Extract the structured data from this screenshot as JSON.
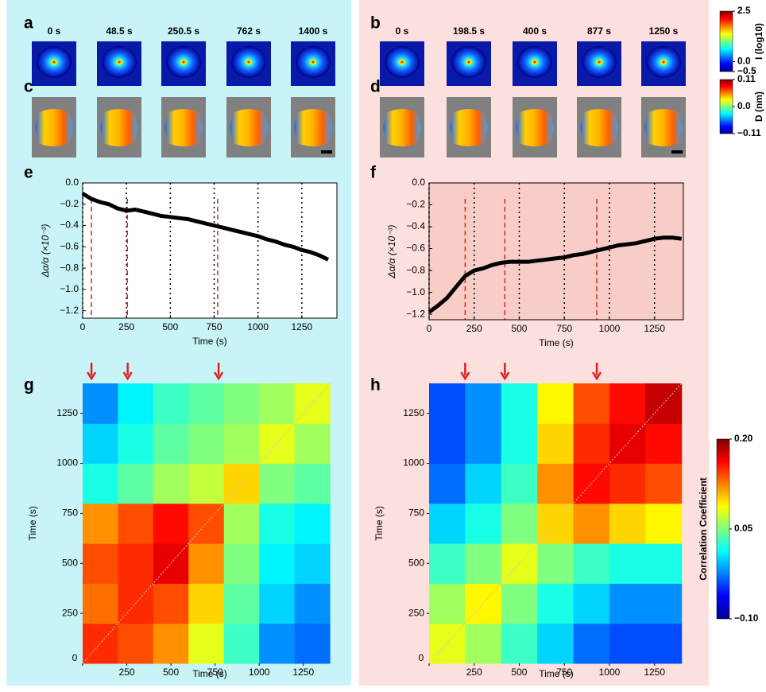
{
  "thumbnails": [
    {
      "label": "a",
      "times": [
        "0 s",
        "48.5 s",
        "250.5 s",
        "762 s",
        "1400 s"
      ]
    },
    {
      "label": "b",
      "times": [
        "0 s",
        "198.5 s",
        "400 s",
        "877 s",
        "1250 s"
      ]
    },
    {
      "label": "c"
    },
    {
      "label": "d"
    }
  ],
  "colorbars": [
    {
      "title": "I (log10)",
      "lim": [
        -0.5,
        2.5
      ],
      "ticks": [
        2.5,
        {
          "value": 0,
          "label": "0.0"
        },
        {
          "value": -0.5,
          "label": "−0.5"
        }
      ]
    },
    {
      "title": "D (nm)",
      "lim": [
        -0.11,
        0.11
      ],
      "ticks": [
        0.11,
        {
          "value": 0,
          "label": "0.0"
        },
        {
          "value": -0.11,
          "label": "−0.11"
        }
      ]
    }
  ],
  "chart_data": [
    {
      "type": "line",
      "label": "e",
      "xlabel": "Time (s)",
      "ylabel": "Δα/α (×10⁻³)",
      "x": [
        0,
        50,
        100,
        150,
        200,
        250,
        300,
        350,
        400,
        450,
        500,
        550,
        600,
        650,
        700,
        750,
        800,
        850,
        900,
        950,
        1000,
        1050,
        1100,
        1150,
        1200,
        1250,
        1300,
        1350,
        1400
      ],
      "series": [
        {
          "color": "#000000",
          "values": [
            -0.1,
            -0.15,
            -0.18,
            -0.2,
            -0.24,
            -0.26,
            -0.25,
            -0.27,
            -0.29,
            -0.31,
            -0.32,
            -0.33,
            -0.34,
            -0.36,
            -0.38,
            -0.4,
            -0.42,
            -0.44,
            -0.46,
            -0.48,
            -0.5,
            -0.53,
            -0.55,
            -0.58,
            -0.6,
            -0.63,
            -0.65,
            -0.68,
            -0.72
          ]
        }
      ],
      "markers": [
        50,
        255,
        770
      ],
      "marker_color": "#e02020",
      "background": "#ffffff",
      "grid": "x",
      "xlim": [
        0,
        1450
      ],
      "ylim": [
        -1.27,
        0
      ],
      "xticks": [
        0,
        250,
        500,
        750,
        1000,
        1250
      ],
      "yticks": [
        {
          "value": 0,
          "label": "0.0"
        },
        {
          "value": -0.2,
          "label": "−0.2"
        },
        {
          "value": -0.4,
          "label": "−0.4"
        },
        {
          "value": -0.6,
          "label": "−0.6"
        },
        {
          "value": -0.8,
          "label": "−0.8"
        },
        {
          "value": -1.0,
          "label": "−1.0"
        },
        {
          "value": -1.2,
          "label": "−1.2"
        }
      ]
    },
    {
      "type": "line",
      "label": "f",
      "xlabel": "Time (s)",
      "ylabel": "Δα/α (×10⁻³)",
      "x": [
        0,
        50,
        100,
        150,
        200,
        250,
        300,
        350,
        400,
        450,
        500,
        550,
        600,
        650,
        700,
        750,
        800,
        850,
        900,
        950,
        1000,
        1050,
        1100,
        1150,
        1200,
        1250,
        1300,
        1350,
        1400
      ],
      "series": [
        {
          "color": "#000000",
          "values": [
            -1.18,
            -1.12,
            -1.05,
            -0.95,
            -0.85,
            -0.8,
            -0.78,
            -0.75,
            -0.73,
            -0.72,
            -0.72,
            -0.72,
            -0.71,
            -0.7,
            -0.69,
            -0.68,
            -0.66,
            -0.65,
            -0.63,
            -0.61,
            -0.59,
            -0.57,
            -0.56,
            -0.55,
            -0.53,
            -0.51,
            -0.5,
            -0.5,
            -0.51
          ]
        }
      ],
      "markers": [
        200,
        420,
        930
      ],
      "marker_color": "#e02020",
      "background": "#f8cdc8",
      "grid": "x",
      "xlim": [
        0,
        1410
      ],
      "ylim": [
        -1.25,
        0
      ],
      "xticks": [
        0,
        250,
        500,
        750,
        1000,
        1250
      ],
      "yticks": [
        {
          "value": 0,
          "label": "0.0"
        },
        {
          "value": -0.2,
          "label": "−0.2"
        },
        {
          "value": -0.4,
          "label": "−0.4"
        },
        {
          "value": -0.6,
          "label": "−0.6"
        },
        {
          "value": -0.8,
          "label": "−0.8"
        },
        {
          "value": -1.0,
          "label": "−1.0"
        },
        {
          "value": -1.2,
          "label": "−1.2"
        }
      ]
    },
    {
      "type": "heatmap",
      "label": "g",
      "xlabel": "Time (s)",
      "ylabel": "Time (s)",
      "x_bins": [
        0,
        200,
        400,
        600,
        800,
        1000,
        1200,
        1400
      ],
      "y_bins": [
        0,
        200,
        400,
        600,
        800,
        1000,
        1200,
        1400
      ],
      "values": [
        [
          0.15,
          0.14,
          0.12,
          0.08,
          0.03,
          -0.02,
          -0.03
        ],
        [
          0.13,
          0.15,
          0.14,
          0.1,
          0.04,
          0.0,
          -0.02
        ],
        [
          0.14,
          0.15,
          0.17,
          0.12,
          0.05,
          0.01,
          0.0
        ],
        [
          0.12,
          0.14,
          0.16,
          0.14,
          0.06,
          0.02,
          0.01
        ],
        [
          0.02,
          0.04,
          0.06,
          0.07,
          0.1,
          0.05,
          0.04
        ],
        [
          0.0,
          0.02,
          0.04,
          0.05,
          0.06,
          0.08,
          0.06
        ],
        [
          -0.02,
          0.01,
          0.03,
          0.04,
          0.05,
          0.06,
          0.08
        ]
      ],
      "arrows": [
        50,
        255,
        770
      ],
      "arrow_color": "#e02020",
      "xlim": [
        0,
        1440
      ],
      "ylim": [
        0,
        1400
      ],
      "xticks": [
        0,
        250,
        500,
        750,
        1000,
        1250
      ],
      "yticks": [
        250,
        500,
        750,
        1000,
        1250
      ]
    },
    {
      "type": "heatmap",
      "label": "h",
      "xlabel": "Time (s)",
      "ylabel": "Time (s)",
      "x_bins": [
        0,
        200,
        400,
        600,
        800,
        1000,
        1200,
        1400
      ],
      "y_bins": [
        0,
        200,
        400,
        600,
        800,
        1000,
        1200,
        1400
      ],
      "values": [
        [
          0.08,
          0.06,
          0.03,
          0.0,
          -0.03,
          -0.04,
          -0.04
        ],
        [
          0.06,
          0.09,
          0.05,
          0.02,
          0.0,
          -0.02,
          -0.02
        ],
        [
          0.03,
          0.05,
          0.08,
          0.05,
          0.03,
          0.02,
          0.02
        ],
        [
          0.0,
          0.02,
          0.05,
          0.1,
          0.12,
          0.1,
          0.09
        ],
        [
          -0.03,
          0.0,
          0.03,
          0.12,
          0.16,
          0.15,
          0.14
        ],
        [
          -0.04,
          -0.02,
          0.02,
          0.1,
          0.15,
          0.17,
          0.16
        ],
        [
          -0.04,
          -0.02,
          0.02,
          0.09,
          0.14,
          0.16,
          0.18
        ]
      ],
      "arrows": [
        200,
        420,
        930
      ],
      "arrow_color": "#e02020",
      "xlim": [
        0,
        1410
      ],
      "ylim": [
        0,
        1400
      ],
      "xticks": [
        0,
        250,
        500,
        750,
        1000,
        1250
      ],
      "yticks": [
        250,
        500,
        750,
        1000,
        1250
      ],
      "colorbar": {
        "title": "Correlation Coefficient",
        "lim": [
          -0.1,
          0.2
        ],
        "ticks": [
          {
            "value": 0.2,
            "label": "0.20"
          },
          0.05,
          {
            "value": -0.1,
            "label": "−0.10"
          }
        ]
      }
    }
  ]
}
